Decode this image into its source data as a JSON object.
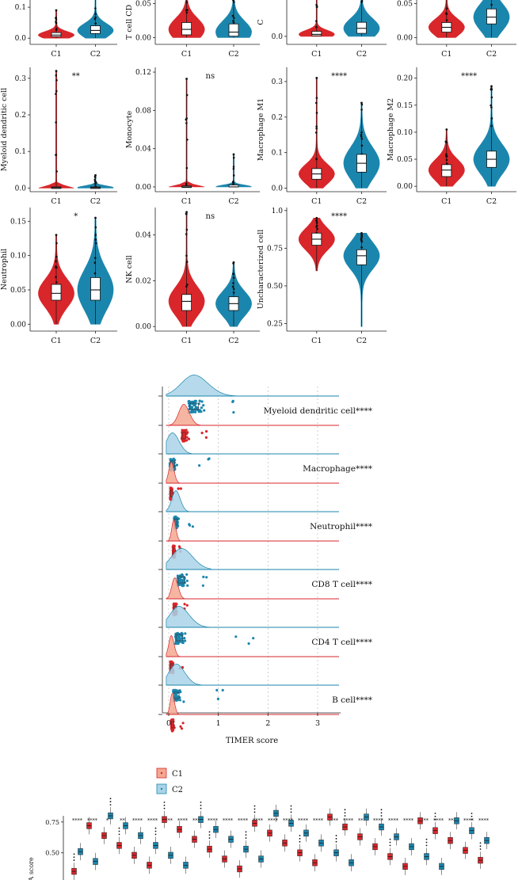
{
  "colors": {
    "c1": "#d8262b",
    "c2": "#1b86ad",
    "c1_ridge": "#f4a890",
    "c2_ridge": "#a9d4e8"
  },
  "chart_data": [
    {
      "type": "violin",
      "panel": "violins",
      "categories": [
        "C1",
        "C2"
      ],
      "panels": [
        {
          "ylabel": "",
          "sig": "",
          "yticks": [
            0.0,
            0.1
          ],
          "ylim": [
            -0.02,
            0.2
          ],
          "medians": [
            0.01,
            0.025
          ],
          "q1": [
            0.005,
            0.015
          ],
          "q3": [
            0.018,
            0.04
          ],
          "max": [
            0.09,
            0.2
          ],
          "visible_top": 0.18
        },
        {
          "ylabel": "T cell CD",
          "sig": "",
          "yticks": [
            0.0,
            0.05
          ],
          "ylim": [
            -0.01,
            0.09
          ],
          "medians": [
            0.012,
            0.008
          ],
          "q1": [
            0.004,
            0.002
          ],
          "q3": [
            0.022,
            0.02
          ],
          "max": [
            0.09,
            0.09
          ],
          "visible_top": 0.075
        },
        {
          "ylabel": "C",
          "sig": "",
          "yticks": [
            0.0
          ],
          "ylim": [
            -0.04,
            0.3
          ],
          "medians": [
            0.01,
            0.04
          ],
          "q1": [
            0.003,
            0.015
          ],
          "q3": [
            0.025,
            0.07
          ],
          "max": [
            0.3,
            0.3
          ],
          "visible_top": 0.22
        },
        {
          "ylabel": "",
          "sig": "",
          "yticks": [
            0.0,
            0.05
          ],
          "ylim": [
            -0.01,
            0.09
          ],
          "medians": [
            0.015,
            0.03
          ],
          "q1": [
            0.008,
            0.02
          ],
          "q3": [
            0.022,
            0.042
          ],
          "max": [
            0.09,
            0.09
          ],
          "visible_top": 0.08
        },
        {
          "ylabel": "Myeloid dendritic cell",
          "sig": "**",
          "yticks": [
            0.0,
            0.1,
            0.2,
            0.3
          ],
          "ylim": [
            -0.01,
            0.33
          ],
          "medians": [
            0.001,
            0.001
          ],
          "q1": [
            0.0,
            0.0
          ],
          "q3": [
            0.003,
            0.003
          ],
          "max": [
            0.32,
            0.035
          ]
        },
        {
          "ylabel": "Monocyte",
          "sig": "ns",
          "yticks": [
            0.0,
            0.04,
            0.08,
            0.12
          ],
          "ylim": [
            -0.005,
            0.125
          ],
          "medians": [
            0.0,
            0.0
          ],
          "q1": [
            0.0,
            0.0
          ],
          "q3": [
            0.001,
            0.002
          ],
          "max": [
            0.113,
            0.034
          ]
        },
        {
          "ylabel": "Macrophage M1",
          "sig": "****",
          "yticks": [
            0.0,
            0.1,
            0.2,
            0.3
          ],
          "ylim": [
            -0.01,
            0.34
          ],
          "medians": [
            0.04,
            0.07
          ],
          "q1": [
            0.025,
            0.045
          ],
          "q3": [
            0.055,
            0.095
          ],
          "max": [
            0.31,
            0.24
          ]
        },
        {
          "ylabel": "Macrophage M2",
          "sig": "****",
          "yticks": [
            0.0,
            0.05,
            0.1,
            0.15,
            0.2
          ],
          "ylim": [
            -0.01,
            0.22
          ],
          "medians": [
            0.03,
            0.05
          ],
          "q1": [
            0.018,
            0.035
          ],
          "q3": [
            0.04,
            0.065
          ],
          "max": [
            0.105,
            0.185
          ]
        },
        {
          "ylabel": "Neutrophil",
          "sig": "*",
          "yticks": [
            0.0,
            0.05,
            0.1,
            0.15
          ],
          "ylim": [
            -0.01,
            0.17
          ],
          "medians": [
            0.045,
            0.05
          ],
          "q1": [
            0.035,
            0.035
          ],
          "q3": [
            0.058,
            0.068
          ],
          "max": [
            0.13,
            0.155
          ]
        },
        {
          "ylabel": "NK cell",
          "sig": "ns",
          "yticks": [
            0.0,
            0.02,
            0.04
          ],
          "ylim": [
            -0.002,
            0.052
          ],
          "medians": [
            0.011,
            0.01
          ],
          "q1": [
            0.007,
            0.007
          ],
          "q3": [
            0.014,
            0.013
          ],
          "max": [
            0.05,
            0.028
          ]
        },
        {
          "ylabel": "Uncharacterized cell",
          "sig": "****",
          "yticks": [
            0.25,
            0.5,
            0.75,
            1.0
          ],
          "ylim": [
            0.2,
            1.02
          ],
          "medians": [
            0.81,
            0.7
          ],
          "q1": [
            0.77,
            0.64
          ],
          "q3": [
            0.85,
            0.74
          ],
          "max": [
            0.95,
            0.85
          ],
          "min": [
            0.6,
            0.23
          ]
        }
      ],
      "tick_labels": {
        "y": [
          [
            "0.0",
            "0.1"
          ],
          [
            "0.00",
            "0.05"
          ],
          [
            "0.0"
          ],
          [
            "0.00",
            "0.05"
          ],
          [
            "0.0",
            "0.1",
            "0.2",
            "0.3"
          ],
          [
            "0.00",
            "0.04",
            "0.08",
            "0.12"
          ],
          [
            "0.0",
            "0.1",
            "0.2",
            "0.3"
          ],
          [
            "0.00",
            "0.05",
            "0.10",
            "0.15",
            "0.20"
          ],
          [
            "0.00",
            "0.05",
            "0.10",
            "0.15"
          ],
          [
            "0.00",
            "0.02",
            "0.04"
          ],
          [
            "0.25",
            "0.50",
            "0.75",
            "1.0"
          ]
        ]
      }
    },
    {
      "type": "raincloud",
      "panel": "timer",
      "xlabel": "TIMER score",
      "xticks": [
        0,
        1,
        2,
        3
      ],
      "xlim": [
        -0.1,
        3.45
      ],
      "categories": [
        "Myeloid dendritic cell****",
        "Macrophage****",
        "Neutrophil****",
        "CD8 T cell****",
        "CD4 T cell****",
        "B cell****"
      ],
      "series": [
        {
          "name": "C1",
          "peaks": [
            0.3,
            0.05,
            0.1,
            0.12,
            0.05,
            0.07
          ],
          "spread": [
            0.1,
            0.05,
            0.04,
            0.06,
            0.05,
            0.04
          ],
          "max": [
            0.8,
            0.25,
            0.25,
            0.4,
            0.3,
            0.3
          ]
        },
        {
          "name": "C2",
          "peaks": [
            0.5,
            0.07,
            0.14,
            0.25,
            0.2,
            0.15
          ],
          "spread": [
            0.25,
            0.12,
            0.08,
            0.2,
            0.18,
            0.15
          ],
          "max": [
            1.35,
            0.85,
            0.5,
            0.8,
            1.75,
            1.3
          ]
        }
      ],
      "legend": [
        "C1",
        "C2"
      ]
    },
    {
      "type": "box",
      "panel": "ssgsea",
      "ylabel": "SEA score",
      "yticks": [
        "0.75",
        "0.50"
      ],
      "sig": [
        "****",
        "****",
        "*",
        "**",
        "****",
        "****",
        "****",
        "****",
        "****",
        "****",
        "****",
        "****",
        "****",
        "****",
        "****",
        "****",
        "****",
        "****",
        "****",
        "****",
        "****",
        "****",
        "****",
        "****",
        "****",
        "****",
        "****",
        "****"
      ]
    }
  ]
}
